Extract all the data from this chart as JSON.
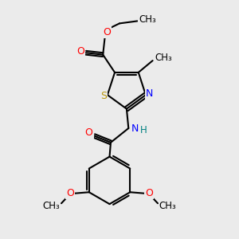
{
  "bg_color": "#ebebeb",
  "bond_color": "#000000",
  "bond_width": 1.5,
  "S_color": "#b8960c",
  "N_color": "#0000ff",
  "O_color": "#ff0000",
  "H_color": "#008080",
  "figsize": [
    3.0,
    3.0
  ],
  "dpi": 100,
  "xlim": [
    0,
    10
  ],
  "ylim": [
    0,
    10
  ]
}
